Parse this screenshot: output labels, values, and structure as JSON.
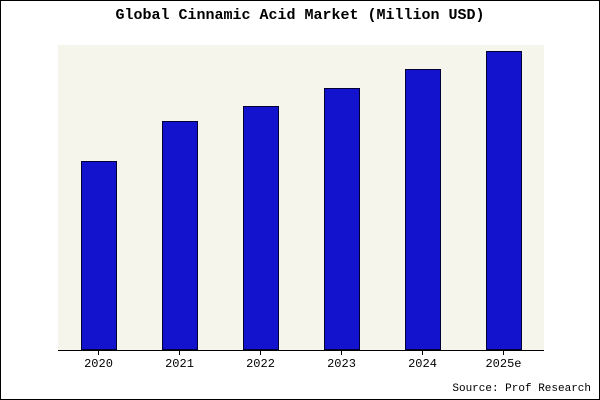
{
  "chart_data": {
    "type": "bar",
    "title": "Global Cinnamic Acid Market (Million USD)",
    "categories": [
      "2020",
      "2021",
      "2022",
      "2023",
      "2024",
      "2025e"
    ],
    "values": [
      62,
      75,
      80,
      86,
      92,
      98
    ],
    "xlabel": "",
    "ylabel": "",
    "ylim": [
      0,
      100
    ],
    "grid": false,
    "legend": false,
    "y_axis_labels_visible": false,
    "bar_color": "#1313cd",
    "bar_border_color": "#000033",
    "plot_background": "#f6f5ec"
  },
  "source": {
    "label": "Source: Prof Research"
  }
}
